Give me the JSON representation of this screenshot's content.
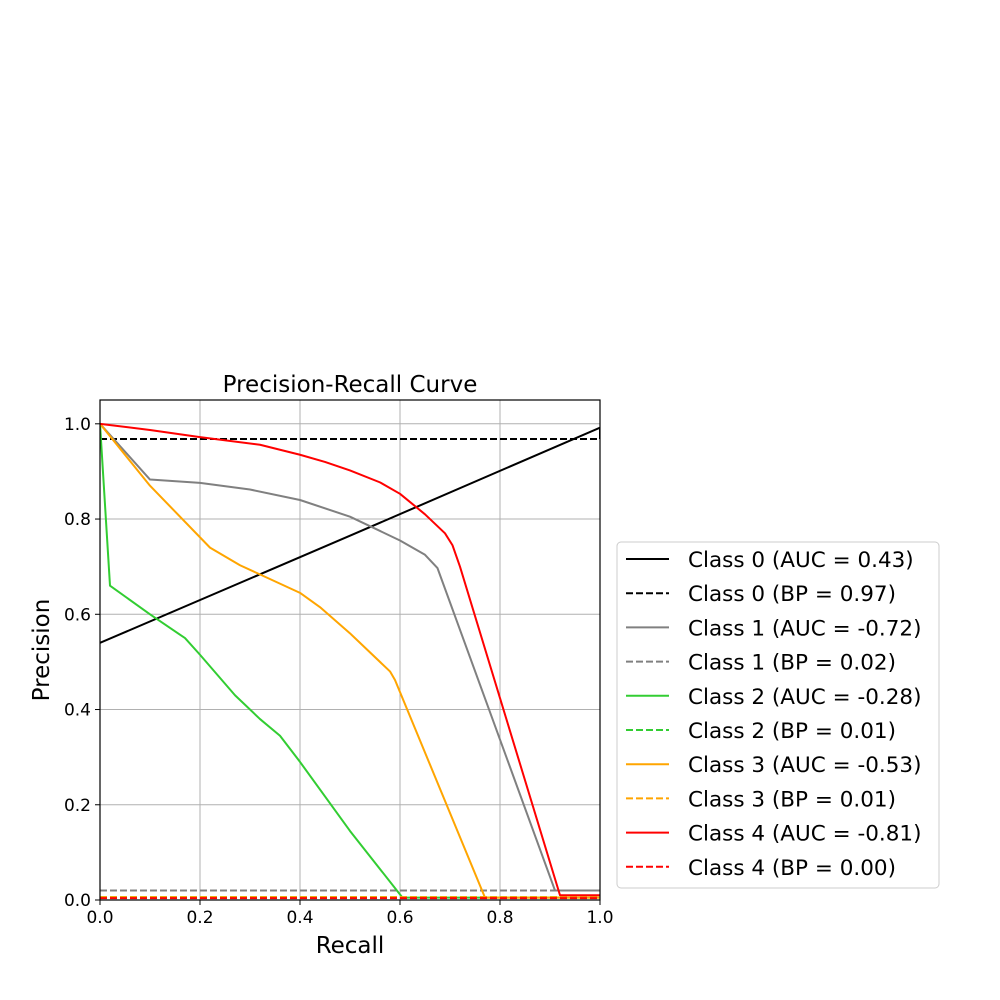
{
  "chart_data": {
    "type": "line",
    "title": "Precision-Recall Curve",
    "xlabel": "Recall",
    "ylabel": "Precision",
    "xlim": [
      0.0,
      1.0
    ],
    "ylim": [
      0.0,
      1.05
    ],
    "xticks": [
      "0.0",
      "0.2",
      "0.4",
      "0.6",
      "0.8",
      "1.0"
    ],
    "yticks": [
      "0.0",
      "0.2",
      "0.4",
      "0.6",
      "0.8",
      "1.0"
    ],
    "grid": true,
    "legend_position": "outside-right",
    "series": [
      {
        "name": "Class 0 (AUC = 0.43)",
        "color": "#000000",
        "dash": "solid",
        "points": [
          [
            0.0,
            0.54
          ],
          [
            0.5,
            0.765
          ],
          [
            1.0,
            0.992
          ],
          [
            1.0,
            0.968
          ]
        ]
      },
      {
        "name": "Class 0 (BP = 0.97)",
        "color": "#000000",
        "dash": "dashed",
        "points": [
          [
            0.0,
            0.968
          ],
          [
            1.0,
            0.968
          ]
        ]
      },
      {
        "name": "Class 1 (AUC = -0.72)",
        "color": "#808080",
        "dash": "solid",
        "points": [
          [
            0.0,
            1.0
          ],
          [
            0.1,
            0.883
          ],
          [
            0.2,
            0.876
          ],
          [
            0.3,
            0.862
          ],
          [
            0.4,
            0.84
          ],
          [
            0.5,
            0.805
          ],
          [
            0.6,
            0.755
          ],
          [
            0.65,
            0.725
          ],
          [
            0.675,
            0.697
          ],
          [
            0.91,
            0.02
          ],
          [
            1.0,
            0.02
          ]
        ]
      },
      {
        "name": "Class 1 (BP = 0.02)",
        "color": "#808080",
        "dash": "dashed",
        "points": [
          [
            0.0,
            0.02
          ],
          [
            1.0,
            0.02
          ]
        ]
      },
      {
        "name": "Class 2 (AUC = -0.28)",
        "color": "#32cd32",
        "dash": "solid",
        "points": [
          [
            0.0,
            1.0
          ],
          [
            0.02,
            0.66
          ],
          [
            0.1,
            0.6
          ],
          [
            0.17,
            0.55
          ],
          [
            0.2,
            0.515
          ],
          [
            0.27,
            0.43
          ],
          [
            0.32,
            0.38
          ],
          [
            0.36,
            0.345
          ],
          [
            0.4,
            0.29
          ],
          [
            0.5,
            0.145
          ],
          [
            0.605,
            0.005
          ],
          [
            1.0,
            0.005
          ]
        ]
      },
      {
        "name": "Class 2 (BP = 0.01)",
        "color": "#32cd32",
        "dash": "dashed",
        "points": [
          [
            0.0,
            0.006
          ],
          [
            1.0,
            0.006
          ]
        ]
      },
      {
        "name": "Class 3 (AUC = -0.53)",
        "color": "#ffa500",
        "dash": "solid",
        "points": [
          [
            0.0,
            1.0
          ],
          [
            0.1,
            0.87
          ],
          [
            0.22,
            0.74
          ],
          [
            0.28,
            0.703
          ],
          [
            0.4,
            0.645
          ],
          [
            0.44,
            0.615
          ],
          [
            0.5,
            0.56
          ],
          [
            0.58,
            0.48
          ],
          [
            0.59,
            0.462
          ],
          [
            0.77,
            0.005
          ],
          [
            1.0,
            0.005
          ]
        ]
      },
      {
        "name": "Class 3 (BP = 0.01)",
        "color": "#ffa500",
        "dash": "dashed",
        "points": [
          [
            0.0,
            0.006
          ],
          [
            1.0,
            0.006
          ]
        ]
      },
      {
        "name": "Class 4 (AUC = -0.81)",
        "color": "#ff0000",
        "dash": "solid",
        "points": [
          [
            0.0,
            1.0
          ],
          [
            0.1,
            0.987
          ],
          [
            0.2,
            0.972
          ],
          [
            0.32,
            0.956
          ],
          [
            0.4,
            0.935
          ],
          [
            0.45,
            0.92
          ],
          [
            0.5,
            0.902
          ],
          [
            0.56,
            0.877
          ],
          [
            0.6,
            0.853
          ],
          [
            0.65,
            0.81
          ],
          [
            0.69,
            0.77
          ],
          [
            0.705,
            0.745
          ],
          [
            0.72,
            0.7
          ],
          [
            0.92,
            0.01
          ],
          [
            1.0,
            0.01
          ]
        ]
      },
      {
        "name": "Class 4 (BP = 0.00)",
        "color": "#ff0000",
        "dash": "dashed",
        "points": [
          [
            0.0,
            0.004
          ],
          [
            1.0,
            0.004
          ]
        ]
      }
    ]
  }
}
